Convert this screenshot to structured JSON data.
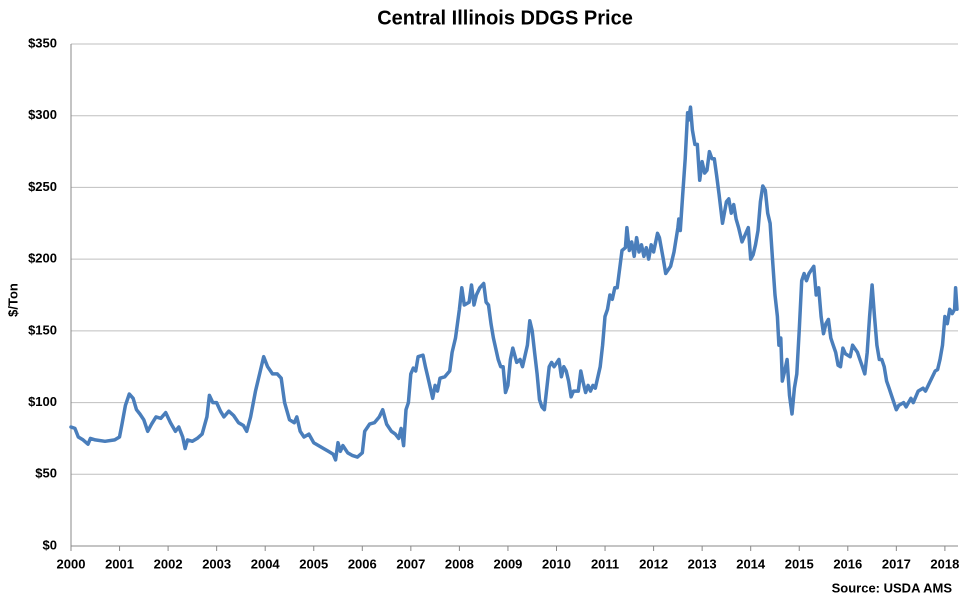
{
  "chart_data": {
    "type": "line",
    "title": "Central Illinois DDGS Price",
    "y_label": "$/Ton",
    "source": "Source: USDA AMS",
    "x": [
      2000.0,
      2000.08,
      2000.15,
      2000.25,
      2000.35,
      2000.4,
      2000.5,
      2000.7,
      2000.9,
      2001.0,
      2001.05,
      2001.12,
      2001.2,
      2001.28,
      2001.35,
      2001.42,
      2001.5,
      2001.58,
      2001.66,
      2001.75,
      2001.85,
      2001.95,
      2002.05,
      2002.15,
      2002.22,
      2002.3,
      2002.35,
      2002.4,
      2002.5,
      2002.6,
      2002.7,
      2002.8,
      2002.85,
      2002.92,
      2003.0,
      2003.08,
      2003.15,
      2003.25,
      2003.35,
      2003.45,
      2003.55,
      2003.62,
      2003.7,
      2003.8,
      2003.9,
      2003.97,
      2004.05,
      2004.15,
      2004.25,
      2004.33,
      2004.4,
      2004.5,
      2004.6,
      2004.65,
      2004.72,
      2004.8,
      2004.9,
      2005.0,
      2005.1,
      2005.2,
      2005.3,
      2005.4,
      2005.45,
      2005.5,
      2005.55,
      2005.6,
      2005.7,
      2005.8,
      2005.9,
      2006.0,
      2006.05,
      2006.15,
      2006.25,
      2006.35,
      2006.42,
      2006.5,
      2006.6,
      2006.68,
      2006.75,
      2006.8,
      2006.85,
      2006.9,
      2006.95,
      2007.0,
      2007.05,
      2007.1,
      2007.15,
      2007.25,
      2007.3,
      2007.35,
      2007.45,
      2007.5,
      2007.55,
      2007.6,
      2007.7,
      2007.8,
      2007.85,
      2007.92,
      2008.0,
      2008.05,
      2008.1,
      2008.2,
      2008.25,
      2008.3,
      2008.35,
      2008.42,
      2008.5,
      2008.55,
      2008.6,
      2008.65,
      2008.7,
      2008.8,
      2008.85,
      2008.9,
      2008.95,
      2009.0,
      2009.05,
      2009.1,
      2009.18,
      2009.25,
      2009.3,
      2009.4,
      2009.45,
      2009.5,
      2009.55,
      2009.6,
      2009.65,
      2009.7,
      2009.75,
      2009.8,
      2009.85,
      2009.9,
      2009.95,
      2010.05,
      2010.1,
      2010.15,
      2010.2,
      2010.25,
      2010.3,
      2010.35,
      2010.45,
      2010.5,
      2010.55,
      2010.6,
      2010.65,
      2010.7,
      2010.75,
      2010.8,
      2010.9,
      2010.95,
      2011.0,
      2011.05,
      2011.1,
      2011.15,
      2011.2,
      2011.25,
      2011.3,
      2011.35,
      2011.42,
      2011.45,
      2011.5,
      2011.55,
      2011.6,
      2011.65,
      2011.7,
      2011.75,
      2011.8,
      2011.85,
      2011.9,
      2011.95,
      2012.0,
      2012.08,
      2012.12,
      2012.2,
      2012.25,
      2012.35,
      2012.42,
      2012.5,
      2012.52,
      2012.55,
      2012.6,
      2012.65,
      2012.7,
      2012.72,
      2012.76,
      2012.8,
      2012.85,
      2012.9,
      2012.95,
      2013.0,
      2013.05,
      2013.1,
      2013.15,
      2013.2,
      2013.25,
      2013.3,
      2013.35,
      2013.42,
      2013.5,
      2013.55,
      2013.6,
      2013.65,
      2013.7,
      2013.75,
      2013.82,
      2013.9,
      2013.95,
      2014.0,
      2014.05,
      2014.1,
      2014.15,
      2014.2,
      2014.25,
      2014.3,
      2014.35,
      2014.4,
      2014.45,
      2014.5,
      2014.55,
      2014.58,
      2014.62,
      2014.65,
      2014.7,
      2014.75,
      2014.8,
      2014.85,
      2014.9,
      2014.95,
      2015.0,
      2015.05,
      2015.1,
      2015.15,
      2015.2,
      2015.3,
      2015.35,
      2015.4,
      2015.45,
      2015.5,
      2015.55,
      2015.6,
      2015.65,
      2015.7,
      2015.75,
      2015.8,
      2015.85,
      2015.9,
      2015.95,
      2016.05,
      2016.1,
      2016.2,
      2016.25,
      2016.3,
      2016.35,
      2016.4,
      2016.45,
      2016.5,
      2016.55,
      2016.6,
      2016.65,
      2016.7,
      2016.75,
      2016.8,
      2016.85,
      2016.9,
      2016.95,
      2017.0,
      2017.05,
      2017.15,
      2017.2,
      2017.3,
      2017.35,
      2017.45,
      2017.55,
      2017.6,
      2017.7,
      2017.8,
      2017.85,
      2017.9,
      2017.95,
      2018.0,
      2018.05,
      2018.1,
      2018.15,
      2018.2,
      2018.22,
      2018.25
    ],
    "series": [
      {
        "name": "Central Illinois DDGS",
        "color": "#4a7ebb",
        "values": [
          83,
          82,
          76,
          74,
          71,
          75,
          74,
          73,
          74,
          76,
          85,
          98,
          106,
          103,
          95,
          92,
          88,
          80,
          85,
          90,
          89,
          93,
          86,
          80,
          83,
          76,
          68,
          74,
          73,
          75,
          78,
          90,
          105,
          100,
          100,
          94,
          90,
          94,
          91,
          86,
          84,
          80,
          90,
          108,
          122,
          132,
          125,
          120,
          120,
          117,
          100,
          88,
          86,
          90,
          80,
          76,
          78,
          72,
          70,
          68,
          66,
          64,
          60,
          72,
          66,
          70,
          65,
          63,
          62,
          65,
          80,
          85,
          86,
          90,
          95,
          85,
          80,
          78,
          75,
          82,
          70,
          95,
          100,
          120,
          124,
          122,
          132,
          133,
          125,
          118,
          103,
          112,
          108,
          117,
          118,
          122,
          135,
          145,
          165,
          180,
          168,
          170,
          182,
          168,
          175,
          180,
          183,
          170,
          168,
          155,
          145,
          130,
          125,
          125,
          107,
          112,
          130,
          138,
          128,
          130,
          125,
          140,
          157,
          150,
          135,
          120,
          102,
          97,
          95,
          110,
          125,
          128,
          125,
          130,
          118,
          125,
          122,
          115,
          104,
          108,
          108,
          122,
          114,
          107,
          112,
          108,
          112,
          110,
          125,
          140,
          160,
          165,
          175,
          172,
          180,
          180,
          193,
          206,
          208,
          222,
          206,
          212,
          202,
          215,
          205,
          210,
          202,
          208,
          200,
          210,
          205,
          218,
          215,
          200,
          190,
          195,
          205,
          222,
          228,
          220,
          245,
          270,
          302,
          297,
          306,
          290,
          280,
          280,
          255,
          268,
          260,
          262,
          275,
          270,
          270,
          258,
          245,
          225,
          240,
          242,
          232,
          238,
          228,
          222,
          212,
          218,
          222,
          200,
          203,
          210,
          220,
          240,
          251,
          248,
          232,
          225,
          200,
          175,
          160,
          140,
          145,
          115,
          122,
          130,
          105,
          92,
          110,
          120,
          150,
          185,
          190,
          185,
          190,
          195,
          175,
          180,
          160,
          148,
          155,
          158,
          145,
          140,
          135,
          126,
          125,
          138,
          134,
          132,
          140,
          135,
          130,
          125,
          120,
          135,
          160,
          182,
          160,
          140,
          130,
          130,
          125,
          115,
          110,
          105,
          100,
          95,
          98,
          100,
          97,
          103,
          100,
          108,
          110,
          108,
          115,
          122,
          123,
          130,
          140,
          160,
          155,
          165,
          162,
          165,
          180,
          165
        ]
      }
    ],
    "xlim": [
      2000,
      2018.27
    ],
    "xticks": [
      2000,
      2001,
      2002,
      2003,
      2004,
      2005,
      2006,
      2007,
      2008,
      2009,
      2010,
      2011,
      2012,
      2013,
      2014,
      2015,
      2016,
      2017,
      2018
    ],
    "ylim": [
      0,
      350
    ],
    "yticks": [
      {
        "value": 0,
        "label": "$0"
      },
      {
        "value": 50,
        "label": "$50"
      },
      {
        "value": 100,
        "label": "$100"
      },
      {
        "value": 150,
        "label": "$150"
      },
      {
        "value": 200,
        "label": "$200"
      },
      {
        "value": 250,
        "label": "$250"
      },
      {
        "value": 300,
        "label": "$300"
      },
      {
        "value": 350,
        "label": "$350"
      }
    ],
    "grid": true
  }
}
